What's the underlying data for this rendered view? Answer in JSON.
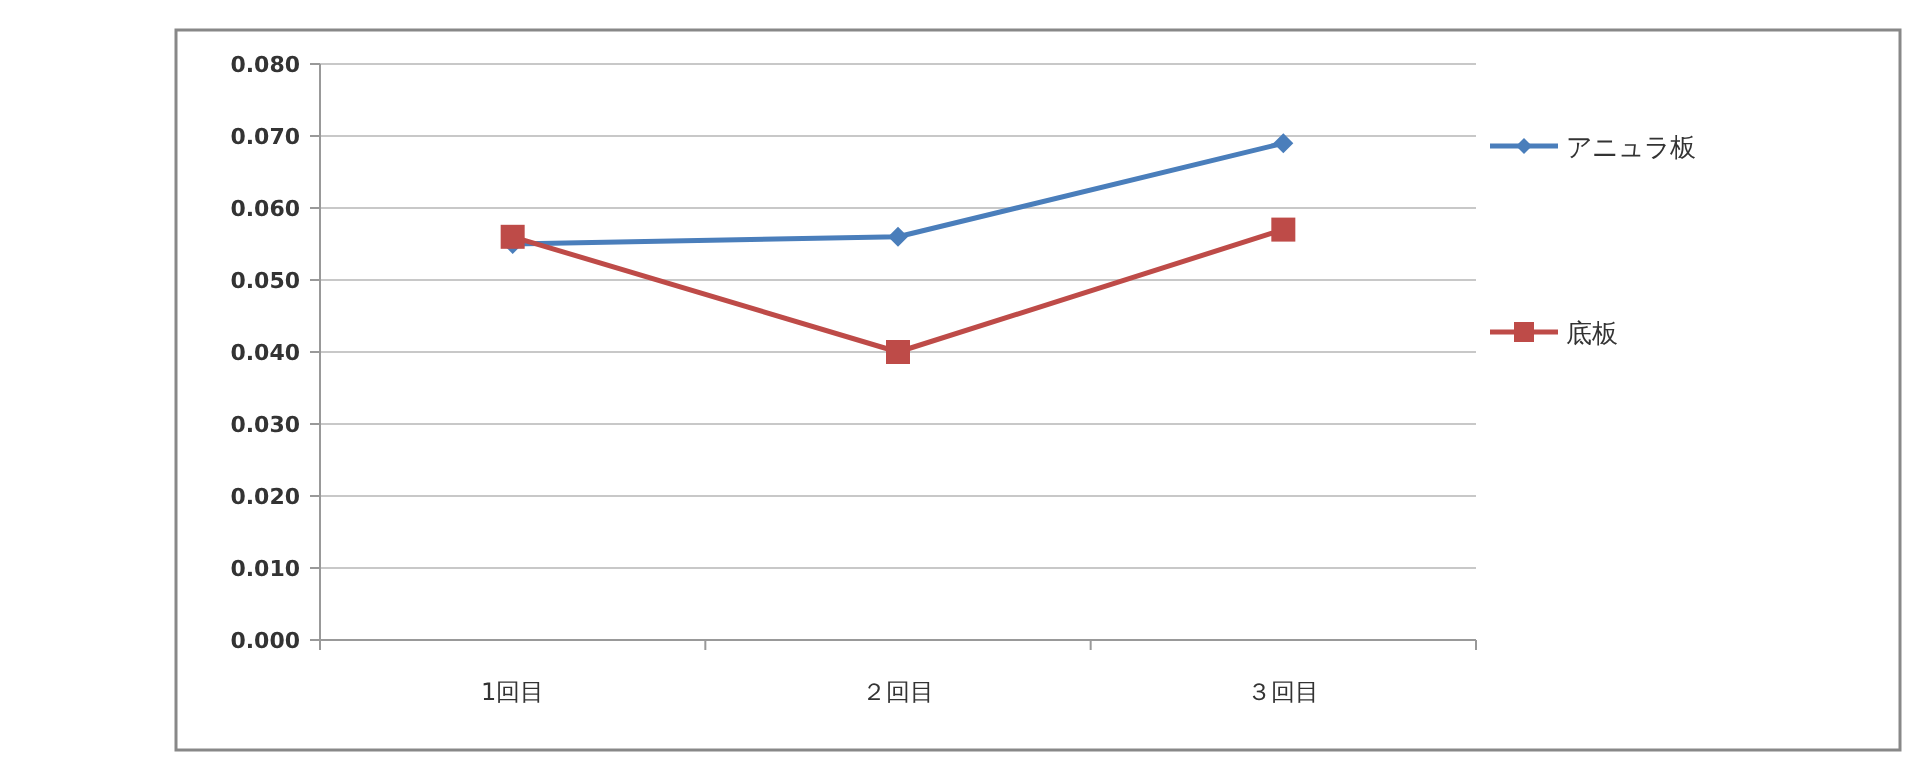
{
  "chart_data": {
    "type": "line",
    "categories": [
      "1回目",
      "２回目",
      "３回目"
    ],
    "series": [
      {
        "name": "アニュラ板",
        "color": "#4a7ebb",
        "marker": "diamond",
        "values": [
          0.055,
          0.056,
          0.069
        ]
      },
      {
        "name": "底板",
        "color": "#be4b48",
        "marker": "square",
        "values": [
          0.056,
          0.04,
          0.057
        ]
      }
    ],
    "ylim": [
      0,
      0.08
    ],
    "yticks": [
      {
        "value": 0,
        "label": "0.000"
      },
      {
        "value": 0.01,
        "label": "0.010"
      },
      {
        "value": 0.02,
        "label": "0.020"
      },
      {
        "value": 0.03,
        "label": "0.030"
      },
      {
        "value": 0.04,
        "label": "0.040"
      },
      {
        "value": 0.05,
        "label": "0.050"
      },
      {
        "value": 0.06,
        "label": "0.060"
      },
      {
        "value": 0.07,
        "label": "0.070"
      },
      {
        "value": 0.08,
        "label": "0.080"
      }
    ],
    "grid": "y",
    "legend": "right"
  }
}
